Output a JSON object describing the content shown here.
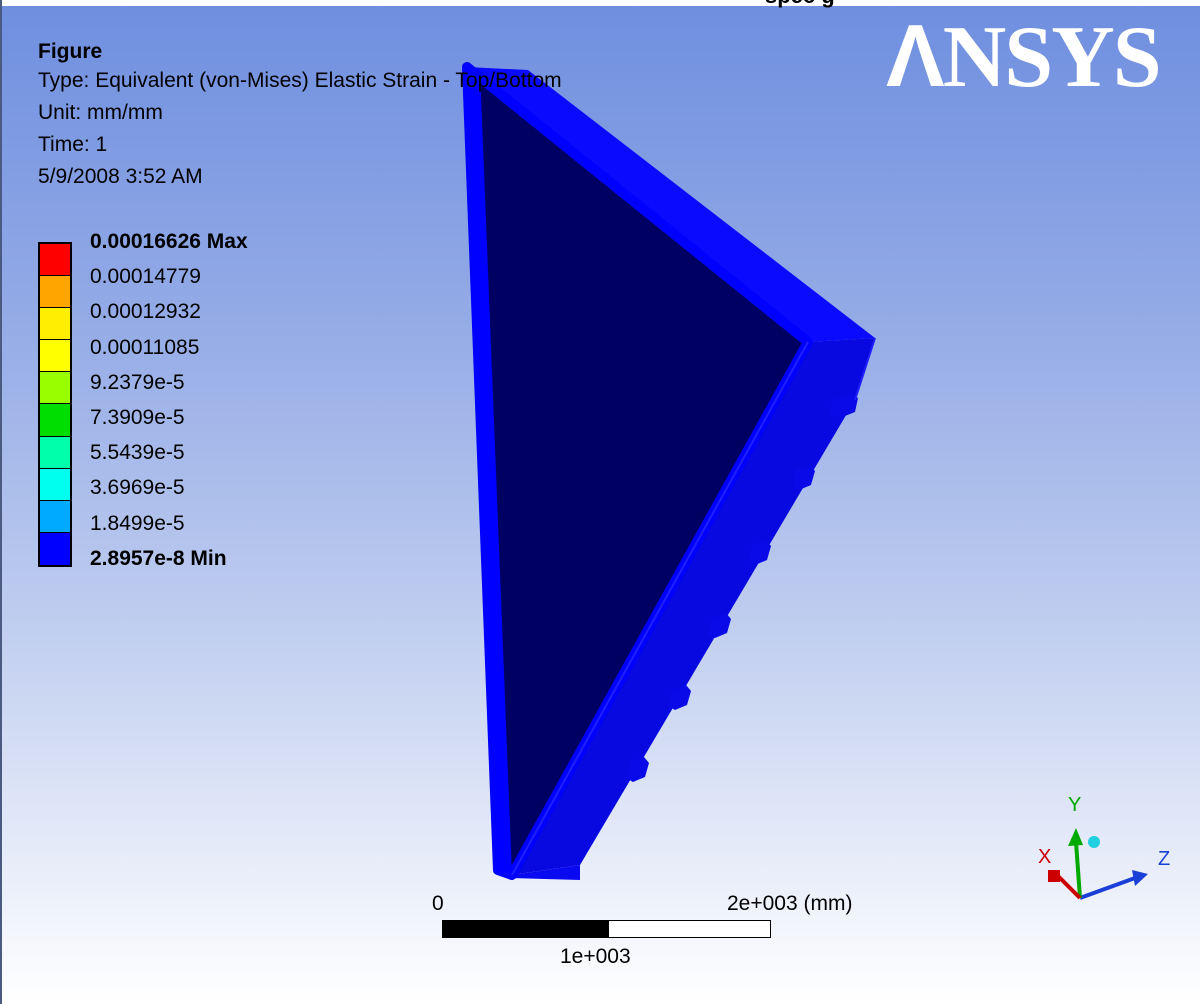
{
  "header": {
    "cut_title": "spec        g"
  },
  "info": {
    "title": "Figure",
    "type": "Type: Equivalent (von-Mises) Elastic Strain - Top/Bottom",
    "unit": "Unit: mm/mm",
    "time": "Time: 1",
    "date": "5/9/2008 3:52 AM"
  },
  "legend": {
    "items": [
      {
        "label": "0.00016626 Max",
        "color": "#ff0000",
        "bold": true
      },
      {
        "label": "0.00014779",
        "color": "#ffa500",
        "bold": false
      },
      {
        "label": "0.00012932",
        "color": "#ffee00",
        "bold": false
      },
      {
        "label": "0.00011085",
        "color": "#ffff00",
        "bold": false
      },
      {
        "label": "9.2379e-5",
        "color": "#99ff00",
        "bold": false
      },
      {
        "label": "7.3909e-5",
        "color": "#00dd00",
        "bold": false
      },
      {
        "label": "5.5439e-5",
        "color": "#00ffaa",
        "bold": false
      },
      {
        "label": "3.6969e-5",
        "color": "#00ffee",
        "bold": false
      },
      {
        "label": "1.8499e-5",
        "color": "#00aaff",
        "bold": false
      },
      {
        "label": "2.8957e-8 Min",
        "color": "#0000ff",
        "bold": true
      }
    ]
  },
  "logo": {
    "text_a": "Λ",
    "text_rest": "NSYS"
  },
  "scale_bar": {
    "left_label": "0",
    "right_label": "2e+003 (mm)",
    "mid_label": "1e+003"
  },
  "triad": {
    "x_label": "X",
    "y_label": "Y",
    "z_label": "Z",
    "x_color": "#cc0000",
    "y_color": "#00aa00",
    "z_color": "#1a3fd6"
  },
  "colors": {
    "model_face": "#000063",
    "model_edge": "#0000ff",
    "model_side": "#0a0ad8"
  }
}
